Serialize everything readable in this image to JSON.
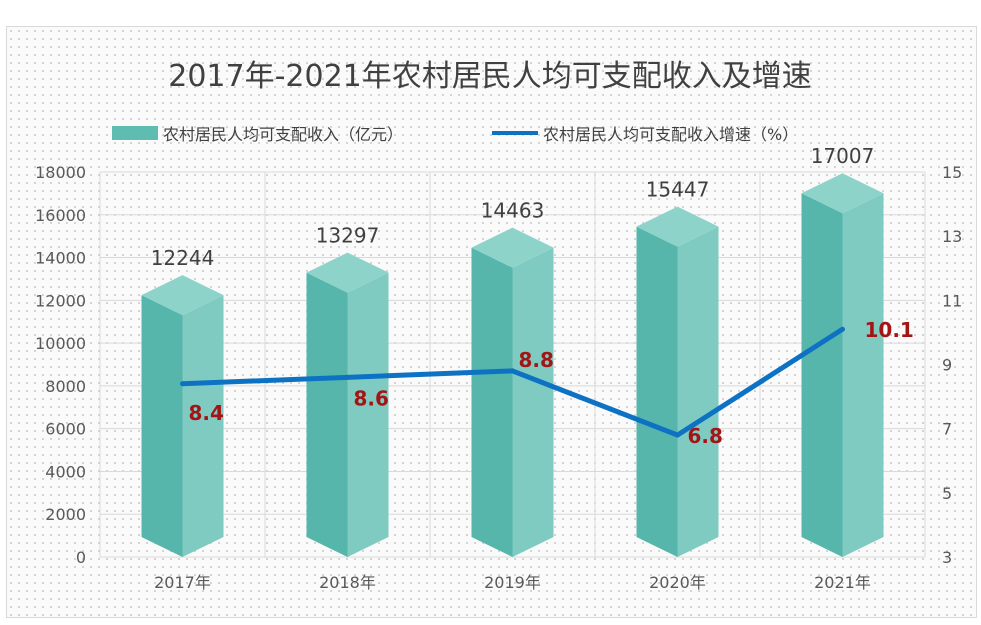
{
  "chart_data": {
    "type": "bar",
    "title": "2017年-2021年农村居民人均可支配收入及增速",
    "categories": [
      "2017年",
      "2018年",
      "2019年",
      "2020年",
      "2021年"
    ],
    "series": [
      {
        "name": "农村居民人均可支配收入（亿元）",
        "type": "bar",
        "axis": "left",
        "color": "#5ebcb0",
        "values": [
          12244,
          13297,
          14463,
          15447,
          17007
        ],
        "labels": [
          "12244",
          "13297",
          "14463",
          "15447",
          "17007"
        ]
      },
      {
        "name": "农村居民人均可支配收入增速（%）",
        "type": "line",
        "axis": "right",
        "color": "#0e72c4",
        "values": [
          8.4,
          8.6,
          8.8,
          6.8,
          10.1
        ],
        "labels": [
          "8.4",
          "8.6",
          "8.8",
          "6.8",
          "10.1"
        ]
      }
    ],
    "y_left": {
      "ylim": [
        0,
        18000
      ],
      "ticks": [
        "0",
        "2000",
        "4000",
        "6000",
        "8000",
        "10000",
        "12000",
        "14000",
        "16000",
        "18000"
      ]
    },
    "y_right": {
      "ylim": [
        3,
        15
      ],
      "ticks": [
        "3",
        "5",
        "7",
        "9",
        "11",
        "13",
        "15"
      ]
    },
    "grid": true,
    "legend_position": "top",
    "label_color": "#a31515"
  }
}
